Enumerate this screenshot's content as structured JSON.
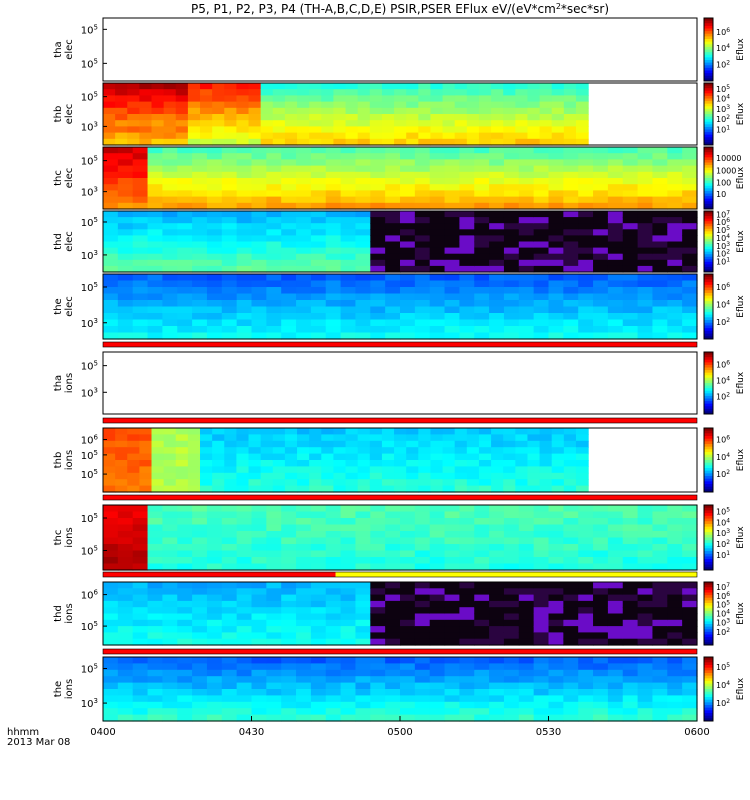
{
  "chart_data": {
    "type": "heatmap",
    "title": "P5, P1, P2, P3, P4 (TH-A,B,C,D,E) PSIR,PSER EFlux eV/(eV*cm2*sec*sr)",
    "title_parts": [
      "P5, P1, P2, P3, P4 (TH-A,B,C,D,E) PSIR,PSER EFlux eV/(eV*cm",
      "2",
      "*sec*sr)"
    ],
    "colorbar_label": "Eflux",
    "x_axis": {
      "label_line1": "hhmm",
      "label_line2": "2013 Mar 08",
      "ticks": [
        "0400",
        "0430",
        "0500",
        "0530",
        "0600"
      ],
      "tick_values_min": [
        0,
        30,
        60,
        90,
        120
      ],
      "range_min": [
        0,
        120
      ]
    },
    "panels": [
      {
        "id": "tha-elec",
        "label": [
          "tha",
          "elec"
        ],
        "yticks": [
          {
            "base": "10",
            "exp": "5",
            "frac": 0.18
          },
          {
            "base": "10",
            "exp": "5",
            "frac": 0.72
          }
        ],
        "data_coverage_min": [],
        "cbar_ticks": [
          {
            "base": "10",
            "exp": "6",
            "frac": 0.22
          },
          {
            "base": "10",
            "exp": "4",
            "frac": 0.48
          },
          {
            "base": "10",
            "exp": "2",
            "frac": 0.74
          }
        ],
        "quality_bar": null
      },
      {
        "id": "thb-elec",
        "label": [
          "thb",
          "elec"
        ],
        "yticks": [
          {
            "base": "10",
            "exp": "5",
            "frac": 0.22
          },
          {
            "base": "10",
            "exp": "3",
            "frac": 0.7
          }
        ],
        "data_coverage_min": [
          0,
          98
        ],
        "cbar_ticks": [
          {
            "base": "10",
            "exp": "5",
            "frac": 0.1
          },
          {
            "base": "10",
            "exp": "4",
            "frac": 0.25
          },
          {
            "base": "10",
            "exp": "3",
            "frac": 0.42
          },
          {
            "base": "10",
            "exp": "2",
            "frac": 0.58
          },
          {
            "base": "10",
            "exp": "1",
            "frac": 0.75
          }
        ],
        "quality_bar": null
      },
      {
        "id": "thc-elec",
        "label": [
          "thc",
          "elec"
        ],
        "yticks": [
          {
            "base": "10",
            "exp": "5",
            "frac": 0.22
          },
          {
            "base": "10",
            "exp": "3",
            "frac": 0.72
          }
        ],
        "data_coverage_min": [
          0,
          120
        ],
        "cbar_ticks": [
          {
            "text": "10000",
            "frac": 0.18
          },
          {
            "text": "1000",
            "frac": 0.38
          },
          {
            "text": "100",
            "frac": 0.57
          },
          {
            "text": "10",
            "frac": 0.76
          }
        ],
        "quality_bar": null
      },
      {
        "id": "thd-elec",
        "label": [
          "thd",
          "elec"
        ],
        "yticks": [
          {
            "base": "10",
            "exp": "5",
            "frac": 0.18
          },
          {
            "base": "10",
            "exp": "3",
            "frac": 0.72
          }
        ],
        "data_coverage_min": [
          0,
          120
        ],
        "cbar_ticks": [
          {
            "base": "10",
            "exp": "7",
            "frac": 0.06
          },
          {
            "base": "10",
            "exp": "6",
            "frac": 0.18
          },
          {
            "base": "10",
            "exp": "5",
            "frac": 0.31
          },
          {
            "base": "10",
            "exp": "4",
            "frac": 0.44
          },
          {
            "base": "10",
            "exp": "3",
            "frac": 0.57
          },
          {
            "base": "10",
            "exp": "2",
            "frac": 0.7
          },
          {
            "base": "10",
            "exp": "1",
            "frac": 0.83
          }
        ],
        "quality_bar": null
      },
      {
        "id": "the-elec",
        "label": [
          "the",
          "elec"
        ],
        "yticks": [
          {
            "base": "10",
            "exp": "5",
            "frac": 0.2
          },
          {
            "base": "10",
            "exp": "3",
            "frac": 0.75
          }
        ],
        "data_coverage_min": [
          0,
          120
        ],
        "cbar_ticks": [
          {
            "base": "10",
            "exp": "6",
            "frac": 0.2
          },
          {
            "base": "10",
            "exp": "4",
            "frac": 0.47
          },
          {
            "base": "10",
            "exp": "2",
            "frac": 0.74
          }
        ],
        "quality_bar": "red"
      },
      {
        "id": "tha-ions",
        "label": [
          "tha",
          "ions"
        ],
        "yticks": [
          {
            "base": "10",
            "exp": "5",
            "frac": 0.22
          },
          {
            "base": "10",
            "exp": "3",
            "frac": 0.65
          }
        ],
        "data_coverage_min": [],
        "cbar_ticks": [
          {
            "base": "10",
            "exp": "6",
            "frac": 0.2
          },
          {
            "base": "10",
            "exp": "4",
            "frac": 0.46
          },
          {
            "base": "10",
            "exp": "2",
            "frac": 0.72
          }
        ],
        "quality_bar": "red"
      },
      {
        "id": "thb-ions",
        "label": [
          "thb",
          "ions"
        ],
        "yticks": [
          {
            "base": "10",
            "exp": "6",
            "frac": 0.18
          },
          {
            "base": "10",
            "exp": "5",
            "frac": 0.42
          },
          {
            "base": "10",
            "exp": "5",
            "frac": 0.72
          }
        ],
        "data_coverage_min": [
          0,
          98
        ],
        "cbar_ticks": [
          {
            "base": "10",
            "exp": "6",
            "frac": 0.18
          },
          {
            "base": "10",
            "exp": "4",
            "frac": 0.45
          },
          {
            "base": "10",
            "exp": "2",
            "frac": 0.72
          }
        ],
        "quality_bar": "red"
      },
      {
        "id": "thc-ions",
        "label": [
          "thc",
          "ions"
        ],
        "yticks": [
          {
            "base": "10",
            "exp": "5",
            "frac": 0.2
          },
          {
            "base": "10",
            "exp": "5",
            "frac": 0.7
          }
        ],
        "data_coverage_min": [
          0,
          120
        ],
        "cbar_ticks": [
          {
            "base": "10",
            "exp": "5",
            "frac": 0.1
          },
          {
            "base": "10",
            "exp": "4",
            "frac": 0.27
          },
          {
            "base": "10",
            "exp": "3",
            "frac": 0.43
          },
          {
            "base": "10",
            "exp": "2",
            "frac": 0.6
          },
          {
            "base": "10",
            "exp": "1",
            "frac": 0.77
          }
        ],
        "quality_bar": "red-yellow"
      },
      {
        "id": "thd-ions",
        "label": [
          "thd",
          "ions"
        ],
        "yticks": [
          {
            "base": "10",
            "exp": "6",
            "frac": 0.2
          },
          {
            "base": "10",
            "exp": "5",
            "frac": 0.7
          }
        ],
        "data_coverage_min": [
          0,
          120
        ],
        "cbar_ticks": [
          {
            "base": "10",
            "exp": "7",
            "frac": 0.08
          },
          {
            "base": "10",
            "exp": "6",
            "frac": 0.22
          },
          {
            "base": "10",
            "exp": "5",
            "frac": 0.36
          },
          {
            "base": "10",
            "exp": "4",
            "frac": 0.5
          },
          {
            "base": "10",
            "exp": "3",
            "frac": 0.64
          },
          {
            "base": "10",
            "exp": "2",
            "frac": 0.79
          }
        ],
        "quality_bar": "red"
      },
      {
        "id": "the-ions",
        "label": [
          "the",
          "ions"
        ],
        "yticks": [
          {
            "base": "10",
            "exp": "5",
            "frac": 0.18
          },
          {
            "base": "10",
            "exp": "3",
            "frac": 0.72
          }
        ],
        "data_coverage_min": [
          0,
          120
        ],
        "cbar_ticks": [
          {
            "base": "10",
            "exp": "5",
            "frac": 0.16
          },
          {
            "base": "10",
            "exp": "4",
            "frac": 0.44
          },
          {
            "base": "10",
            "exp": "2",
            "frac": 0.72
          }
        ],
        "quality_bar": null
      }
    ]
  }
}
